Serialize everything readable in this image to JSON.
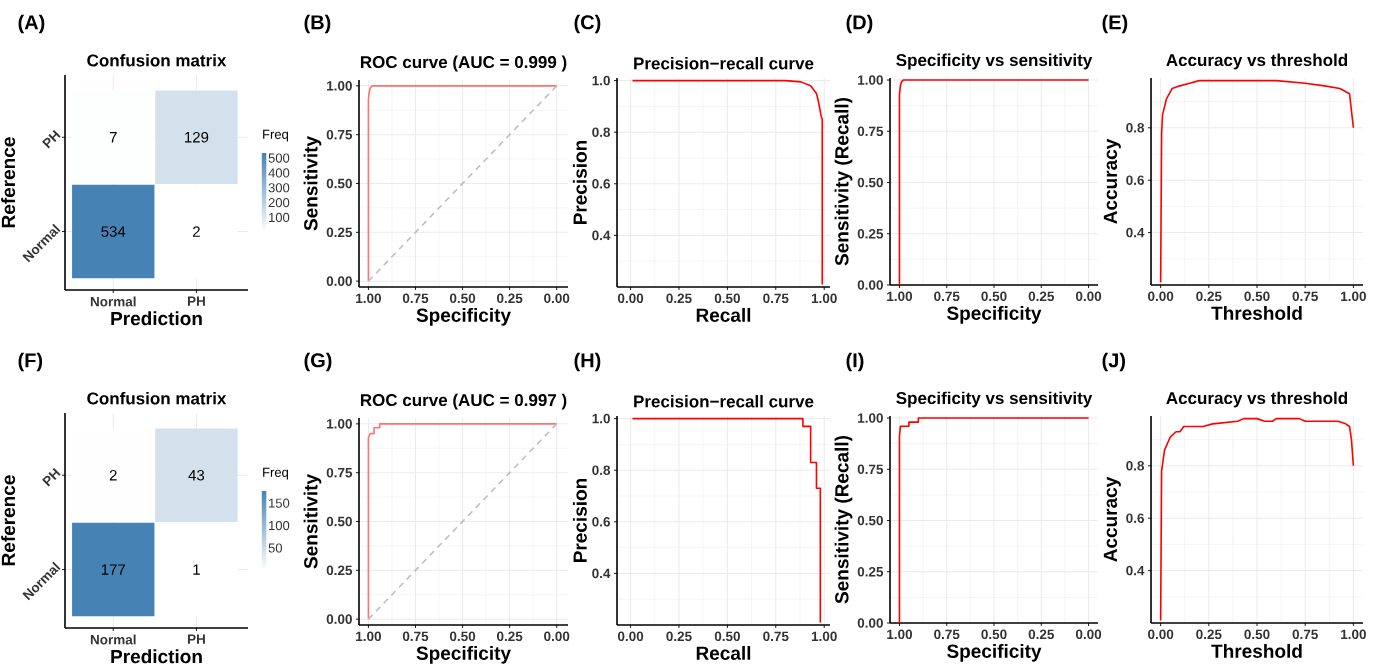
{
  "chart_data": [
    {
      "type": "heatmap",
      "title": "Confusion matrix",
      "xlabel": "Prediction",
      "ylabel": "Reference",
      "clabel": "Freq",
      "annotations": [
        "(A)"
      ],
      "categories": [
        "Normal",
        "PH"
      ],
      "y_categories": [
        "PH",
        "Normal"
      ],
      "cells": [
        [
          7,
          129
        ],
        [
          534,
          2
        ]
      ],
      "clim": [
        2,
        534
      ],
      "cticks": [
        100,
        200,
        300,
        400,
        500
      ],
      "color": "#4682b4",
      "data_labels": true,
      "grid": true
    },
    {
      "type": "line",
      "title": "ROC curve (AUC = 0.999 )",
      "xlabel": "Specificity",
      "ylabel": "Sensitivity",
      "annotations": [
        "(B)"
      ],
      "xlim": [
        1.05,
        -0.06
      ],
      "ylim": [
        -0.03,
        1.03
      ],
      "xticks": [
        {
          "value": 1,
          "label": "1.00"
        },
        {
          "value": 0.75,
          "label": "0.75"
        },
        {
          "value": 0.5,
          "label": "0.50"
        },
        {
          "value": 0.25,
          "label": "0.25"
        },
        {
          "value": 0,
          "label": "0.00"
        }
      ],
      "yticks": [
        {
          "value": 0,
          "label": "0.00"
        },
        {
          "value": 0.25,
          "label": "0.25"
        },
        {
          "value": 0.5,
          "label": "0.50"
        },
        {
          "value": 0.75,
          "label": "0.75"
        },
        {
          "value": 1,
          "label": "1.00"
        }
      ],
      "grid": true,
      "series": [
        {
          "color": "#f8766d",
          "x": [
            1,
            1,
            0.995,
            0.99,
            0.98,
            0.96,
            0
          ],
          "values": [
            0,
            0.93,
            0.97,
            0.99,
            1,
            1,
            1
          ]
        },
        {
          "color": "#bebebe",
          "line_style": "dashed",
          "x": [
            1,
            0
          ],
          "values": [
            0,
            1
          ]
        }
      ]
    },
    {
      "type": "line",
      "title": "Precision−recall curve",
      "xlabel": "Recall",
      "ylabel": "Precision",
      "annotations": [
        "(C)"
      ],
      "xlim": [
        -0.07,
        1.03
      ],
      "ylim": [
        0.2,
        1.01
      ],
      "xticks": [
        {
          "value": 0,
          "label": "0.00"
        },
        {
          "value": 0.25,
          "label": "0.25"
        },
        {
          "value": 0.5,
          "label": "0.50"
        },
        {
          "value": 0.75,
          "label": "0.75"
        },
        {
          "value": 1,
          "label": "1.00"
        }
      ],
      "yticks": [
        {
          "value": 0.4,
          "label": "0.4"
        },
        {
          "value": 0.6,
          "label": "0.6"
        },
        {
          "value": 0.8,
          "label": "0.8"
        },
        {
          "value": 1,
          "label": "1.0"
        }
      ],
      "grid": true,
      "series": [
        {
          "color": "#ff0000",
          "x": [
            0.01,
            0.8,
            0.88,
            0.93,
            0.96,
            0.97,
            0.98,
            0.985,
            0.99,
            0.99
          ],
          "values": [
            1,
            1,
            0.995,
            0.98,
            0.95,
            0.92,
            0.88,
            0.86,
            0.85,
            0.21
          ]
        }
      ]
    },
    {
      "type": "line",
      "title": "Specificity vs sensitivity",
      "xlabel": "Specificity",
      "ylabel": "Sensitivity (Recall)",
      "annotations": [
        "(D)"
      ],
      "xlim": [
        1.05,
        -0.05
      ],
      "ylim": [
        0,
        1.01
      ],
      "xticks": [
        {
          "value": 1,
          "label": "1.00"
        },
        {
          "value": 0.75,
          "label": "0.75"
        },
        {
          "value": 0.5,
          "label": "0.50"
        },
        {
          "value": 0.25,
          "label": "0.25"
        },
        {
          "value": 0,
          "label": "0.00"
        }
      ],
      "yticks": [
        {
          "value": 0,
          "label": "0.00"
        },
        {
          "value": 0.25,
          "label": "0.25"
        },
        {
          "value": 0.5,
          "label": "0.50"
        },
        {
          "value": 0.75,
          "label": "0.75"
        },
        {
          "value": 1,
          "label": "1.00"
        }
      ],
      "grid": true,
      "series": [
        {
          "color": "#ff0000",
          "x": [
            1,
            1,
            0.995,
            0.99,
            0.98,
            0
          ],
          "values": [
            0,
            0.93,
            0.97,
            0.99,
            1,
            1
          ]
        }
      ]
    },
    {
      "type": "line",
      "title": "Accuracy vs threshold",
      "xlabel": "Threshold",
      "ylabel": "Accuracy",
      "annotations": [
        "(E)"
      ],
      "xlim": [
        -0.05,
        1.05
      ],
      "ylim": [
        0.2,
        0.99
      ],
      "xticks": [
        {
          "value": 0,
          "label": "0.00"
        },
        {
          "value": 0.25,
          "label": "0.25"
        },
        {
          "value": 0.5,
          "label": "0.50"
        },
        {
          "value": 0.75,
          "label": "0.75"
        },
        {
          "value": 1,
          "label": "1.00"
        }
      ],
      "yticks": [
        {
          "value": 0.4,
          "label": "0.4"
        },
        {
          "value": 0.6,
          "label": "0.6"
        },
        {
          "value": 0.8,
          "label": "0.8"
        }
      ],
      "grid": true,
      "series": [
        {
          "color": "#ff0000",
          "x": [
            0,
            0.005,
            0.01,
            0.03,
            0.06,
            0.1,
            0.15,
            0.2,
            0.4,
            0.6,
            0.75,
            0.85,
            0.93,
            0.98,
            1
          ],
          "values": [
            0.21,
            0.78,
            0.85,
            0.91,
            0.95,
            0.96,
            0.97,
            0.98,
            0.98,
            0.98,
            0.97,
            0.96,
            0.95,
            0.93,
            0.8
          ]
        }
      ]
    },
    {
      "type": "heatmap",
      "title": "Confusion matrix",
      "xlabel": "Prediction",
      "ylabel": "Reference",
      "clabel": "Freq",
      "annotations": [
        "(F)"
      ],
      "categories": [
        "Normal",
        "PH"
      ],
      "y_categories": [
        "PH",
        "Normal"
      ],
      "cells": [
        [
          2,
          43
        ],
        [
          177,
          1
        ]
      ],
      "clim": [
        1,
        177
      ],
      "cticks": [
        50,
        100,
        150
      ],
      "color": "#4682b4",
      "data_labels": true,
      "grid": true
    },
    {
      "type": "line",
      "title": "ROC curve (AUC = 0.997 )",
      "xlabel": "Specificity",
      "ylabel": "Sensitivity",
      "annotations": [
        "(G)"
      ],
      "xlim": [
        1.05,
        -0.06
      ],
      "ylim": [
        -0.03,
        1.03
      ],
      "xticks": [
        {
          "value": 1,
          "label": "1.00"
        },
        {
          "value": 0.75,
          "label": "0.75"
        },
        {
          "value": 0.5,
          "label": "0.50"
        },
        {
          "value": 0.25,
          "label": "0.25"
        },
        {
          "value": 0,
          "label": "0.00"
        }
      ],
      "yticks": [
        {
          "value": 0,
          "label": "0.00"
        },
        {
          "value": 0.25,
          "label": "0.25"
        },
        {
          "value": 0.5,
          "label": "0.50"
        },
        {
          "value": 0.75,
          "label": "0.75"
        },
        {
          "value": 1,
          "label": "1.00"
        }
      ],
      "grid": true,
      "series": [
        {
          "color": "#f8766d",
          "x": [
            1,
            1,
            0.99,
            0.97,
            0.97,
            0.94,
            0.94,
            0
          ],
          "values": [
            0,
            0.93,
            0.95,
            0.95,
            0.98,
            0.98,
            1,
            1
          ]
        },
        {
          "color": "#bebebe",
          "line_style": "dashed",
          "x": [
            1,
            0
          ],
          "values": [
            0,
            1
          ]
        }
      ]
    },
    {
      "type": "line",
      "title": "Precision−recall curve",
      "xlabel": "Recall",
      "ylabel": "Precision",
      "annotations": [
        "(H)"
      ],
      "xlim": [
        -0.07,
        1.03
      ],
      "ylim": [
        0.2,
        1.01
      ],
      "xticks": [
        {
          "value": 0,
          "label": "0.00"
        },
        {
          "value": 0.25,
          "label": "0.25"
        },
        {
          "value": 0.5,
          "label": "0.50"
        },
        {
          "value": 0.75,
          "label": "0.75"
        },
        {
          "value": 1,
          "label": "1.00"
        }
      ],
      "yticks": [
        {
          "value": 0.4,
          "label": "0.4"
        },
        {
          "value": 0.6,
          "label": "0.6"
        },
        {
          "value": 0.8,
          "label": "0.8"
        },
        {
          "value": 1,
          "label": "1.0"
        }
      ],
      "grid": true,
      "series": [
        {
          "color": "#ff0000",
          "x": [
            0.01,
            0.89,
            0.89,
            0.93,
            0.93,
            0.96,
            0.96,
            0.98,
            0.98
          ],
          "values": [
            1,
            1,
            0.97,
            0.97,
            0.83,
            0.83,
            0.73,
            0.73,
            0.21
          ]
        }
      ]
    },
    {
      "type": "line",
      "title": "Specificity vs sensitivity",
      "xlabel": "Specificity",
      "ylabel": "Sensitivity (Recall)",
      "annotations": [
        "(I)"
      ],
      "xlim": [
        1.05,
        -0.05
      ],
      "ylim": [
        0,
        1.01
      ],
      "xticks": [
        {
          "value": 1,
          "label": "1.00"
        },
        {
          "value": 0.75,
          "label": "0.75"
        },
        {
          "value": 0.5,
          "label": "0.50"
        },
        {
          "value": 0.25,
          "label": "0.25"
        },
        {
          "value": 0,
          "label": "0.00"
        }
      ],
      "yticks": [
        {
          "value": 0,
          "label": "0.00"
        },
        {
          "value": 0.25,
          "label": "0.25"
        },
        {
          "value": 0.5,
          "label": "0.50"
        },
        {
          "value": 0.75,
          "label": "0.75"
        },
        {
          "value": 1,
          "label": "1.00"
        }
      ],
      "grid": true,
      "series": [
        {
          "color": "#ff0000",
          "x": [
            1,
            1,
            0.995,
            0.95,
            0.95,
            0.9,
            0.9,
            0
          ],
          "values": [
            0,
            0.91,
            0.96,
            0.96,
            0.98,
            0.98,
            1,
            1
          ]
        }
      ]
    },
    {
      "type": "line",
      "title": "Accuracy vs threshold",
      "xlabel": "Threshold",
      "ylabel": "Accuracy",
      "annotations": [
        "(J)"
      ],
      "xlim": [
        -0.05,
        1.05
      ],
      "ylim": [
        0.2,
        0.99
      ],
      "xticks": [
        {
          "value": 0,
          "label": "0.00"
        },
        {
          "value": 0.25,
          "label": "0.25"
        },
        {
          "value": 0.5,
          "label": "0.50"
        },
        {
          "value": 0.75,
          "label": "0.75"
        },
        {
          "value": 1,
          "label": "1.00"
        }
      ],
      "yticks": [
        {
          "value": 0.4,
          "label": "0.4"
        },
        {
          "value": 0.6,
          "label": "0.6"
        },
        {
          "value": 0.8,
          "label": "0.8"
        }
      ],
      "grid": true,
      "series": [
        {
          "color": "#ff0000",
          "x": [
            0,
            0.005,
            0.02,
            0.05,
            0.08,
            0.1,
            0.12,
            0.22,
            0.27,
            0.4,
            0.43,
            0.5,
            0.54,
            0.58,
            0.6,
            0.72,
            0.75,
            0.92,
            0.96,
            0.98,
            0.99,
            1
          ],
          "values": [
            0.21,
            0.78,
            0.86,
            0.91,
            0.93,
            0.93,
            0.95,
            0.95,
            0.96,
            0.97,
            0.98,
            0.98,
            0.97,
            0.97,
            0.98,
            0.98,
            0.97,
            0.97,
            0.96,
            0.95,
            0.9,
            0.8
          ]
        }
      ]
    }
  ]
}
